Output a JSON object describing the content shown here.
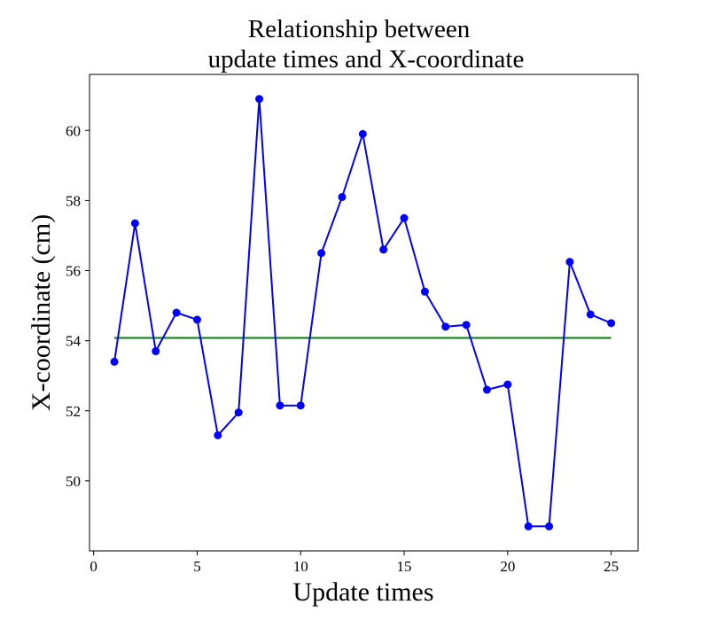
{
  "chart_data": {
    "type": "line",
    "title_lines": [
      "Relationship between",
      "update times and X-coordinate"
    ],
    "xlabel": "Update times",
    "ylabel": "X-coordinate (cm)",
    "xlim": [
      -0.2,
      26.3
    ],
    "ylim": [
      48.0,
      61.6
    ],
    "x_ticks": [
      0,
      5,
      10,
      15,
      20,
      25
    ],
    "y_ticks": [
      50,
      52,
      54,
      56,
      58,
      60
    ],
    "grid": false,
    "series": [
      {
        "color": "#0000ff",
        "marker": "circle",
        "x": [
          1,
          2,
          3,
          4,
          5,
          6,
          7,
          8,
          9,
          10,
          11,
          12,
          13,
          14,
          15,
          16,
          17,
          18,
          19,
          20,
          21,
          22,
          23,
          24,
          25
        ],
        "y": [
          53.4,
          57.35,
          53.7,
          54.8,
          54.6,
          51.3,
          51.95,
          60.9,
          52.15,
          52.15,
          56.5,
          58.1,
          59.9,
          56.6,
          57.5,
          55.4,
          54.4,
          54.45,
          52.6,
          52.75,
          48.7,
          48.7,
          56.25,
          54.75,
          54.5
        ]
      }
    ],
    "reference_line": {
      "color": "#008000",
      "x": [
        1,
        25
      ],
      "y": 54.08
    }
  }
}
